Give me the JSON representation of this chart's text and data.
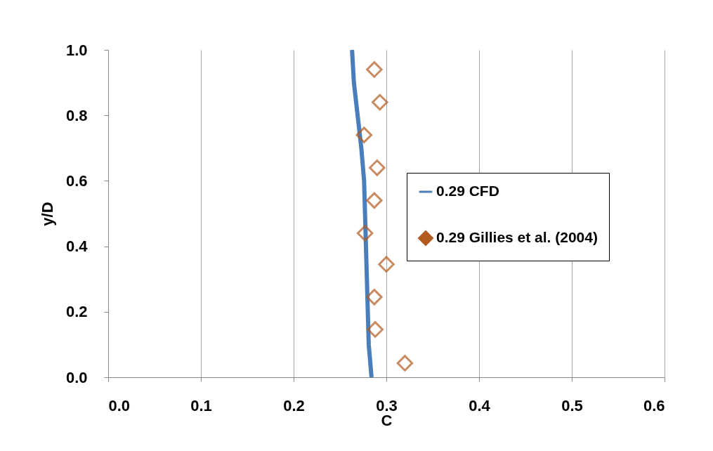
{
  "chart_data": {
    "type": "line",
    "xlabel": "C",
    "ylabel": "y/D",
    "xlim": [
      0,
      0.6
    ],
    "xticks": [
      {
        "value": 0,
        "label": "0.0"
      },
      {
        "value": 0.1,
        "label": "0.1"
      },
      {
        "value": 0.2,
        "label": "0.2"
      },
      {
        "value": 0.3,
        "label": "0.3"
      },
      {
        "value": 0.4,
        "label": "0.4"
      },
      {
        "value": 0.5,
        "label": "0.5"
      },
      {
        "value": 0.6,
        "label": "0.6"
      }
    ],
    "ylim": [
      0,
      1
    ],
    "yticks": [
      {
        "value": 0,
        "label": "0.0"
      },
      {
        "value": 0.2,
        "label": "0.2"
      },
      {
        "value": 0.4,
        "label": "0.4"
      },
      {
        "value": 0.6,
        "label": "0.6"
      },
      {
        "value": 0.8,
        "label": "0.8"
      },
      {
        "value": 1,
        "label": "1.0"
      }
    ],
    "grid": "x",
    "legend": "right",
    "series": [
      {
        "name": "0.29 CFD",
        "type": "line",
        "color": "#4a7ebb",
        "marker": "none",
        "line_style": "solid",
        "x": [
          0.284,
          0.281,
          0.28,
          0.279,
          0.278,
          0.277,
          0.276,
          0.273,
          0.269,
          0.265,
          0.263
        ],
        "values": [
          0,
          0.1,
          0.2,
          0.3,
          0.4,
          0.5,
          0.6,
          0.7,
          0.8,
          0.9,
          1.0
        ]
      },
      {
        "name": "0.29 Gillies et al. (2004)",
        "type": "scatter",
        "color": "#b35a1f",
        "marker": "diamond",
        "x": [
          0.287,
          0.293,
          0.276,
          0.29,
          0.287,
          0.277,
          0.3,
          0.287,
          0.288,
          0.32
        ],
        "values": [
          0.94,
          0.84,
          0.74,
          0.64,
          0.54,
          0.44,
          0.345,
          0.245,
          0.146,
          0.043
        ]
      }
    ]
  }
}
